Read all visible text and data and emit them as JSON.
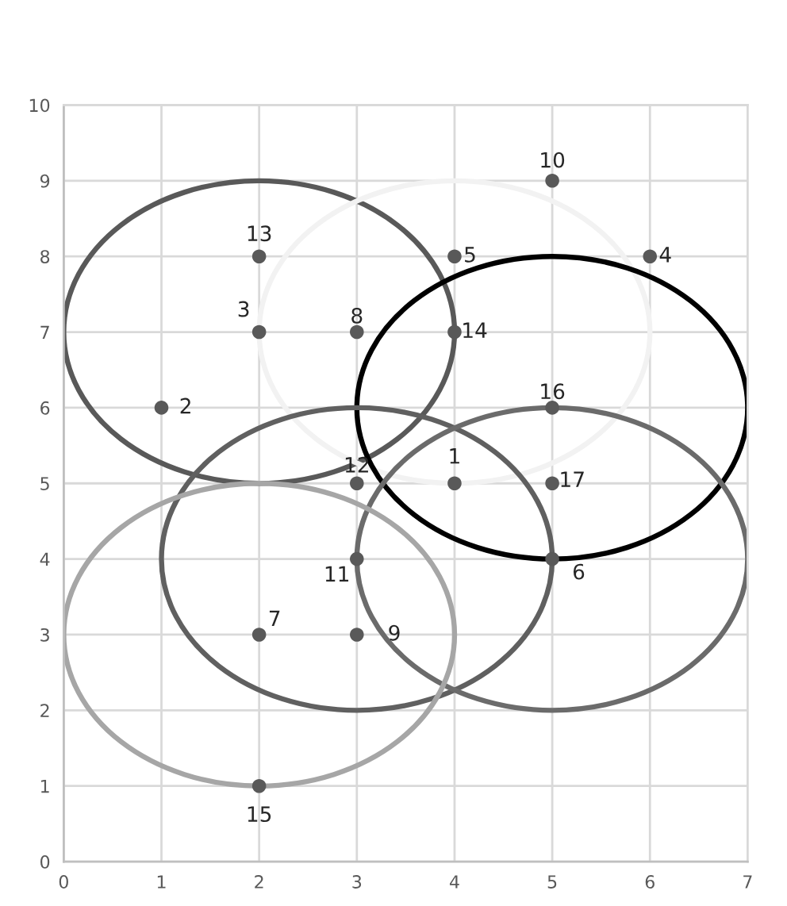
{
  "chart_data": {
    "type": "scatter",
    "xlim": [
      0,
      7
    ],
    "ylim": [
      0,
      10
    ],
    "xticks": [
      0,
      1,
      2,
      3,
      4,
      5,
      6,
      7
    ],
    "yticks": [
      0,
      1,
      2,
      3,
      4,
      5,
      6,
      7,
      8,
      9,
      10
    ],
    "grid": true,
    "series": [
      {
        "color": "#595959",
        "marker": "circle",
        "x": [
          4,
          1,
          2,
          6,
          4,
          5,
          2,
          3,
          3,
          5,
          3,
          3,
          2,
          4,
          2,
          5,
          5
        ],
        "values": [
          5,
          6,
          7,
          8,
          8,
          4,
          3,
          7,
          3,
          9,
          4,
          5,
          8,
          7,
          1,
          6,
          5
        ]
      }
    ],
    "annotations": [
      {
        "text": "1",
        "x": 4,
        "y": 5
      },
      {
        "text": "2",
        "x": 1,
        "y": 6
      },
      {
        "text": "3",
        "x": 2,
        "y": 7
      },
      {
        "text": "4",
        "x": 6,
        "y": 8
      },
      {
        "text": "5",
        "x": 4,
        "y": 8
      },
      {
        "text": "6",
        "x": 5,
        "y": 4
      },
      {
        "text": "7",
        "x": 2,
        "y": 3
      },
      {
        "text": "8",
        "x": 3,
        "y": 7
      },
      {
        "text": "9",
        "x": 3,
        "y": 3
      },
      {
        "text": "10",
        "x": 5,
        "y": 9
      },
      {
        "text": "11",
        "x": 3,
        "y": 4
      },
      {
        "text": "12",
        "x": 3,
        "y": 5
      },
      {
        "text": "13",
        "x": 2,
        "y": 8
      },
      {
        "text": "14",
        "x": 4,
        "y": 7
      },
      {
        "text": "15",
        "x": 2,
        "y": 1
      },
      {
        "text": "16",
        "x": 5,
        "y": 6
      },
      {
        "text": "17",
        "x": 5,
        "y": 5
      }
    ]
  }
}
